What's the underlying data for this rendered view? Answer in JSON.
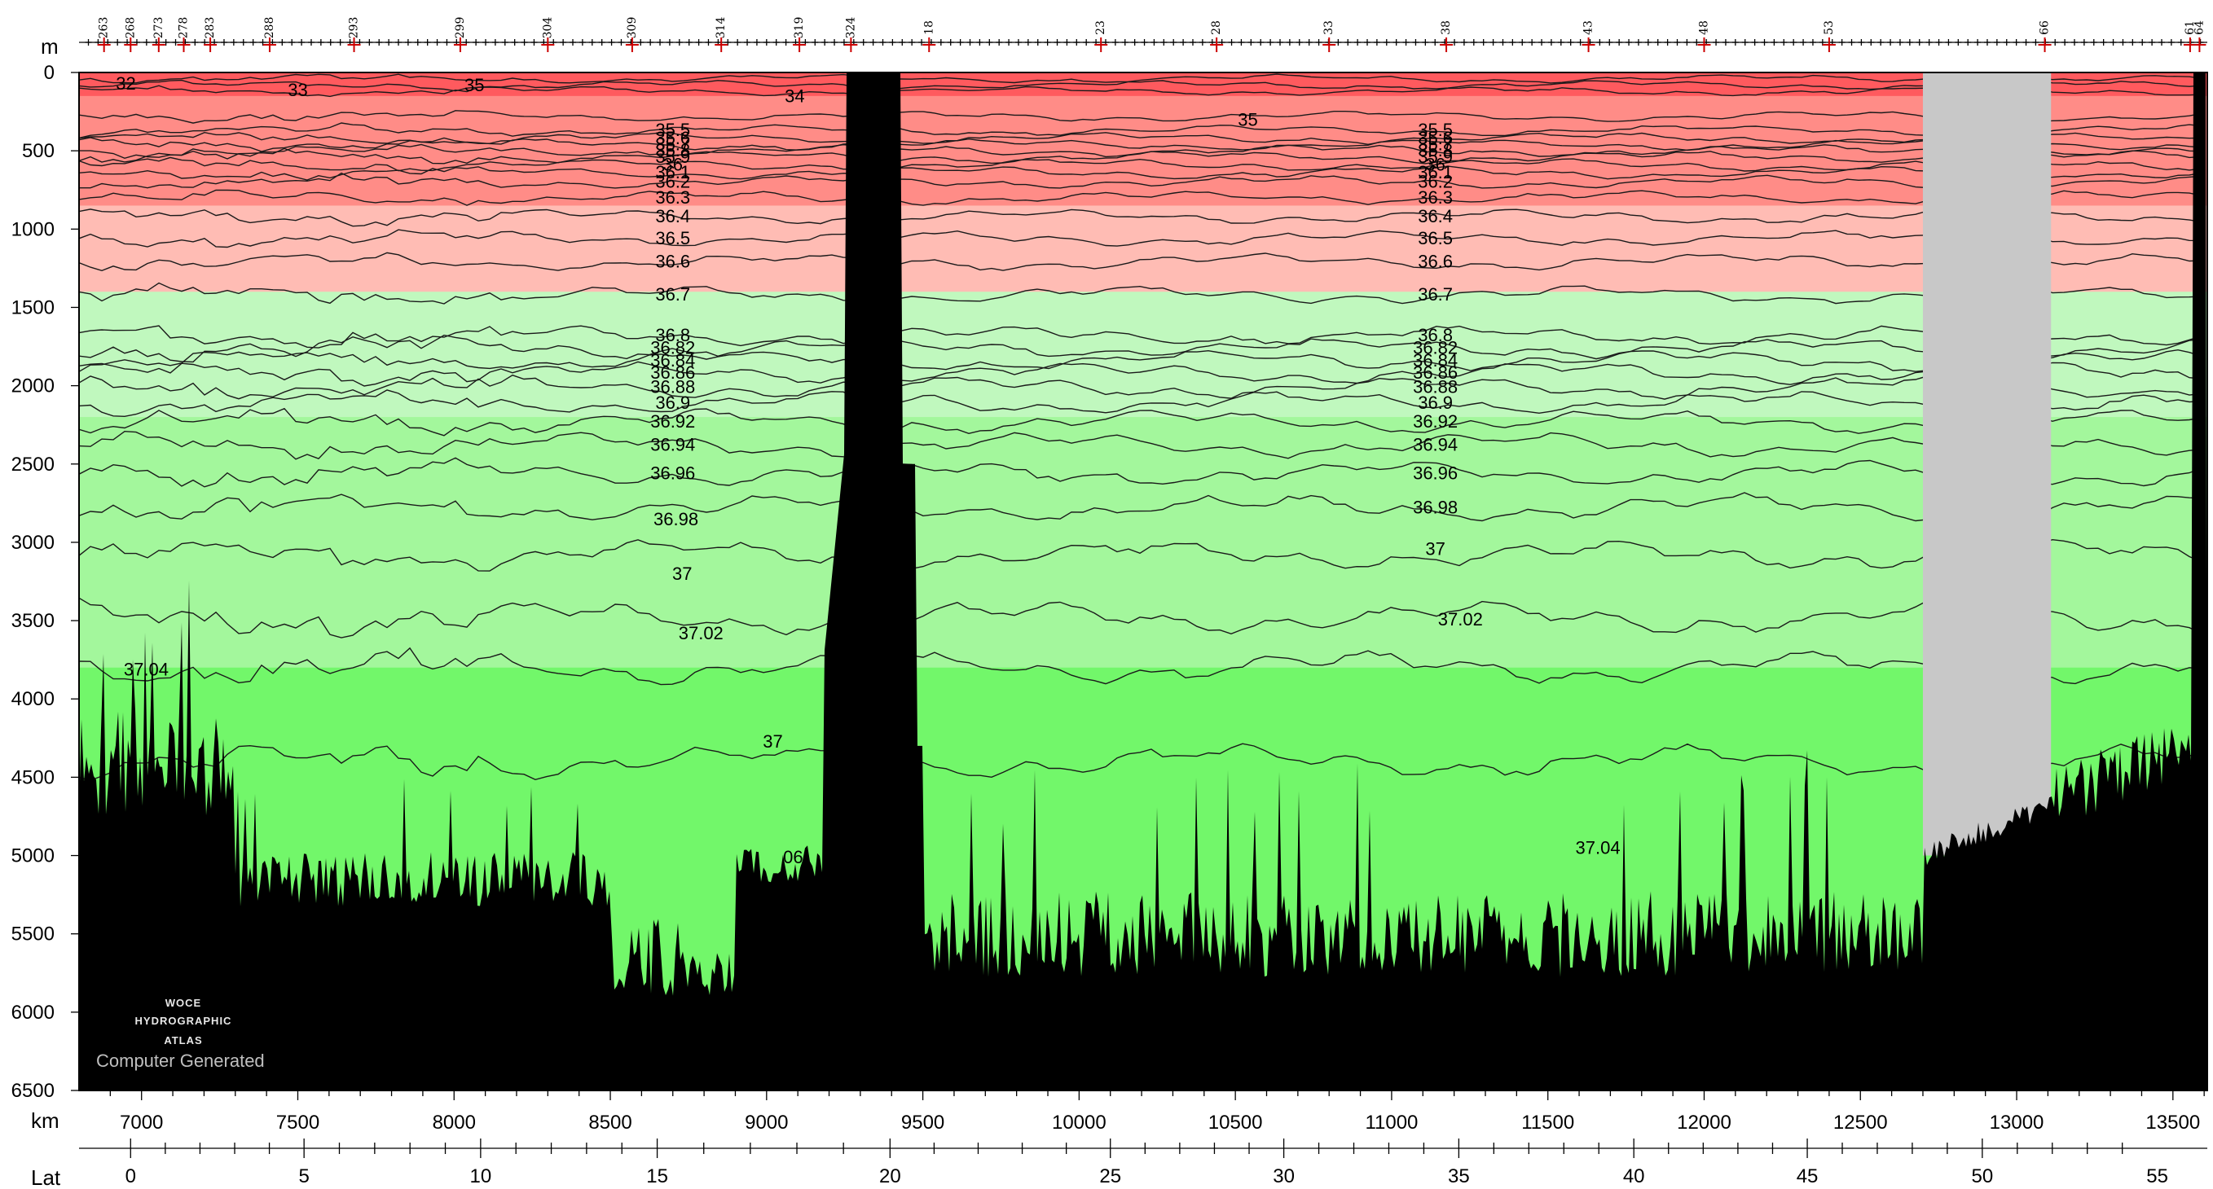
{
  "chart_data": {
    "type": "heatmap",
    "description_variable": "salinity-like section (contoured)",
    "axes": {
      "depth": {
        "unit_label": "m",
        "ticks": [
          0,
          500,
          1000,
          1500,
          2000,
          2500,
          3000,
          3500,
          4000,
          4500,
          5000,
          5500,
          6000,
          6500
        ],
        "range": [
          0,
          6500
        ]
      },
      "distance": {
        "unit_label": "km",
        "ticks": [
          7000,
          7500,
          8000,
          8500,
          9000,
          9500,
          10000,
          10500,
          11000,
          11500,
          12000,
          12500,
          13000,
          13500
        ],
        "range": [
          6800,
          13610
        ]
      },
      "latitude": {
        "unit_label": "Lat",
        "ticks": [
          0,
          5,
          10,
          15,
          20,
          25,
          30,
          35,
          40,
          45,
          50,
          55
        ],
        "tick_km": [
          6965,
          7520,
          8085,
          8650,
          9395,
          10100,
          10655,
          11215,
          11775,
          12330,
          12890,
          13450
        ]
      }
    },
    "stations": {
      "labels": [
        "263",
        "268",
        "273",
        "278",
        "283",
        "288",
        "293",
        "299",
        "304",
        "309",
        "314",
        "319",
        "324",
        "18",
        "23",
        "28",
        "33",
        "38",
        "43",
        "48",
        "53",
        "66",
        "61",
        "64"
      ],
      "label_km": [
        6880,
        6965,
        7055,
        7135,
        7220,
        7410,
        7680,
        8020,
        8300,
        8570,
        8855,
        9105,
        9270,
        9520,
        10070,
        10440,
        10800,
        11175,
        11630,
        12000,
        12400,
        13090,
        13555,
        13585
      ]
    },
    "color_bands": [
      {
        "max_depth": 150,
        "color": "#ff5a5e"
      },
      {
        "max_depth": 850,
        "color": "#ff8c87"
      },
      {
        "max_depth": 1400,
        "color": "#ffbcb4"
      },
      {
        "max_depth": 2200,
        "color": "#c0f8be"
      },
      {
        "max_depth": 3800,
        "color": "#a3f79c"
      },
      {
        "max_depth": 6500,
        "color": "#72f76a"
      }
    ],
    "contours": [
      {
        "value": "32",
        "depth": 40
      },
      {
        "value": "33",
        "depth": 80
      },
      {
        "value": "34",
        "depth": 120
      },
      {
        "value": "35",
        "depth": 280
      },
      {
        "value": "35.5",
        "depth": 370
      },
      {
        "value": "35.6",
        "depth": 420
      },
      {
        "value": "35.7",
        "depth": 460
      },
      {
        "value": "35.8",
        "depth": 500
      },
      {
        "value": "35.9",
        "depth": 540
      },
      {
        "value": "36",
        "depth": 590
      },
      {
        "value": "36.1",
        "depth": 640
      },
      {
        "value": "36.2",
        "depth": 700
      },
      {
        "value": "36.3",
        "depth": 800
      },
      {
        "value": "36.4",
        "depth": 920
      },
      {
        "value": "36.5",
        "depth": 1060
      },
      {
        "value": "36.6",
        "depth": 1210
      },
      {
        "value": "36.7",
        "depth": 1420
      },
      {
        "value": "36.8",
        "depth": 1680
      },
      {
        "value": "36.82",
        "depth": 1760
      },
      {
        "value": "36.84",
        "depth": 1840
      },
      {
        "value": "36.86",
        "depth": 1920
      },
      {
        "value": "36.88",
        "depth": 2010
      },
      {
        "value": "36.9",
        "depth": 2110
      },
      {
        "value": "36.92",
        "depth": 2230
      },
      {
        "value": "36.94",
        "depth": 2380
      },
      {
        "value": "36.96",
        "depth": 2560
      },
      {
        "value": "36.98",
        "depth": 2780
      },
      {
        "value": "37",
        "depth": 3080
      },
      {
        "value": "37.02",
        "depth": 3480
      },
      {
        "value": "37.04",
        "depth": 3800
      },
      {
        "value": "37.06",
        "depth": 4400
      }
    ],
    "contour_label_columns": [
      {
        "km": 8700,
        "values": [
          "35.5",
          "35.6",
          "35.7",
          "35.8",
          "35.9",
          "36",
          "36.1",
          "36.2",
          "36.3",
          "36.4",
          "36.5",
          "36.6",
          "36.7",
          "36.8",
          "36.82",
          "36.84",
          "36.86",
          "36.88",
          "36.9",
          "36.92",
          "36.94",
          "36.96"
        ]
      },
      {
        "km": 11140,
        "values": [
          "35.5",
          "35.6",
          "35.7",
          "35.8",
          "35.9",
          "36",
          "36.1",
          "36.2",
          "36.3",
          "36.4",
          "36.5",
          "36.6",
          "36.7",
          "36.8",
          "36.82",
          "36.84",
          "36.86",
          "36.88",
          "36.9",
          "36.92",
          "36.94",
          "36.96",
          "36.98"
        ]
      }
    ],
    "extra_contour_labels": [
      {
        "text": "32",
        "km": 6950,
        "depth": 110
      },
      {
        "text": "33",
        "km": 7500,
        "depth": 150
      },
      {
        "text": "35",
        "km": 8065,
        "depth": 120
      },
      {
        "text": "34",
        "km": 9090,
        "depth": 190
      },
      {
        "text": "35",
        "km": 10540,
        "depth": 340
      },
      {
        "text": "36.98",
        "km": 8710,
        "depth": 2890
      },
      {
        "text": "37",
        "km": 8730,
        "depth": 3240
      },
      {
        "text": "37",
        "km": 11140,
        "depth": 3080
      },
      {
        "text": "37.02",
        "km": 8790,
        "depth": 3620
      },
      {
        "text": "37.02",
        "km": 11220,
        "depth": 3530
      },
      {
        "text": "37.04",
        "km": 7015,
        "depth": 3850
      },
      {
        "text": "37.04",
        "km": 11660,
        "depth": 4990
      },
      {
        "text": "37",
        "km": 9020,
        "depth": 4310
      },
      {
        "text": "06",
        "km": 9085,
        "depth": 5050
      }
    ],
    "gap": {
      "km_start": 12700,
      "km_end": 13110,
      "max_depth": 5000,
      "color": "#c8c8c8"
    },
    "bathymetry_color": "#000000",
    "watermark": {
      "line1": "WOCE",
      "line2": "HYDROGRAPHIC",
      "line3": "ATLAS",
      "line4": "Computer Generated"
    }
  }
}
